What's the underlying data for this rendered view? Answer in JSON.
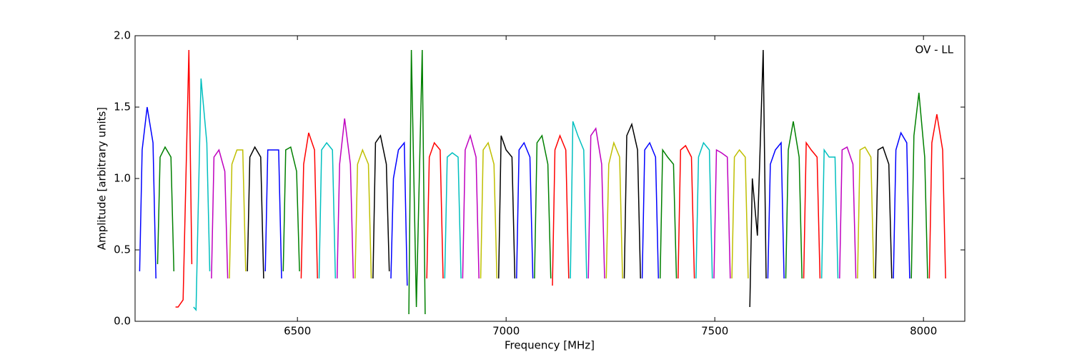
{
  "chart_data": {
    "type": "line",
    "annotation": "OV - LL",
    "xlabel": "Frequency [MHz]",
    "ylabel": "Amplitude [arbitrary units]",
    "xlim": [
      6111,
      8099
    ],
    "ylim": [
      0,
      2
    ],
    "xticks": [
      6500,
      7000,
      7500,
      8000
    ],
    "yticks": [
      {
        "value": 0,
        "label": "0.0"
      },
      0.5,
      {
        "value": 1,
        "label": "1.0"
      },
      1.5,
      {
        "value": 2,
        "label": "2.0"
      }
    ],
    "series": [
      {
        "color": "#0000ff",
        "x": [
          6122,
          6128,
          6140,
          6154,
          6161
        ],
        "values": [
          0.35,
          1.2,
          1.5,
          1.25,
          0.3
        ]
      },
      {
        "color": "#008000",
        "x": [
          6165,
          6171,
          6183,
          6197,
          6204
        ],
        "values": [
          0.4,
          1.15,
          1.22,
          1.15,
          0.35
        ]
      },
      {
        "color": "#ff0000",
        "x": [
          6208,
          6214,
          6226,
          6240,
          6247
        ],
        "values": [
          0.1,
          0.1,
          0.15,
          1.9,
          0.4
        ]
      },
      {
        "color": "#00bfbf",
        "x": [
          6251,
          6257,
          6269,
          6283,
          6290
        ],
        "values": [
          0.1,
          0.08,
          1.7,
          1.25,
          0.35
        ]
      },
      {
        "color": "#bf00bf",
        "x": [
          6294,
          6300,
          6312,
          6326,
          6333
        ],
        "values": [
          0.3,
          1.15,
          1.2,
          1.05,
          0.3
        ]
      },
      {
        "color": "#bfbf00",
        "x": [
          6337,
          6343,
          6355,
          6369,
          6376
        ],
        "values": [
          0.3,
          1.1,
          1.2,
          1.2,
          0.35
        ]
      },
      {
        "color": "#000000",
        "x": [
          6380,
          6386,
          6398,
          6412,
          6419
        ],
        "values": [
          0.35,
          1.15,
          1.22,
          1.15,
          0.3
        ]
      },
      {
        "color": "#0000ff",
        "x": [
          6423,
          6429,
          6441,
          6455,
          6462
        ],
        "values": [
          0.35,
          1.2,
          1.2,
          1.2,
          0.3
        ]
      },
      {
        "color": "#008000",
        "x": [
          6466,
          6472,
          6484,
          6498,
          6505
        ],
        "values": [
          0.35,
          1.2,
          1.22,
          1.05,
          0.35
        ]
      },
      {
        "color": "#ff0000",
        "x": [
          6509,
          6515,
          6527,
          6541,
          6548
        ],
        "values": [
          0.3,
          1.1,
          1.32,
          1.2,
          0.3
        ]
      },
      {
        "color": "#00bfbf",
        "x": [
          6552,
          6558,
          6570,
          6584,
          6591
        ],
        "values": [
          0.3,
          1.2,
          1.25,
          1.2,
          0.3
        ]
      },
      {
        "color": "#bf00bf",
        "x": [
          6595,
          6601,
          6613,
          6627,
          6634
        ],
        "values": [
          0.3,
          1.1,
          1.42,
          1.1,
          0.3
        ]
      },
      {
        "color": "#bfbf00",
        "x": [
          6638,
          6644,
          6656,
          6670,
          6677
        ],
        "values": [
          0.3,
          1.1,
          1.2,
          1.1,
          0.3
        ]
      },
      {
        "color": "#000000",
        "x": [
          6681,
          6687,
          6699,
          6713,
          6720
        ],
        "values": [
          0.3,
          1.25,
          1.3,
          1.1,
          0.35
        ]
      },
      {
        "color": "#0000ff",
        "x": [
          6724,
          6730,
          6742,
          6756,
          6763
        ],
        "values": [
          0.3,
          1.0,
          1.2,
          1.25,
          0.25
        ]
      },
      {
        "color": "#008000",
        "x": [
          6767,
          6773,
          6785,
          6799,
          6806
        ],
        "values": [
          0.05,
          1.9,
          0.1,
          1.9,
          0.05
        ]
      },
      {
        "color": "#ff0000",
        "x": [
          6810,
          6816,
          6828,
          6842,
          6849
        ],
        "values": [
          0.3,
          1.15,
          1.25,
          1.2,
          0.3
        ]
      },
      {
        "color": "#00bfbf",
        "x": [
          6853,
          6859,
          6871,
          6885,
          6892
        ],
        "values": [
          0.3,
          1.15,
          1.18,
          1.15,
          0.3
        ]
      },
      {
        "color": "#bf00bf",
        "x": [
          6896,
          6902,
          6914,
          6928,
          6935
        ],
        "values": [
          0.3,
          1.2,
          1.3,
          1.15,
          0.3
        ]
      },
      {
        "color": "#bfbf00",
        "x": [
          6939,
          6945,
          6957,
          6971,
          6978
        ],
        "values": [
          0.3,
          1.2,
          1.25,
          1.1,
          0.3
        ]
      },
      {
        "color": "#000000",
        "x": [
          6982,
          6988,
          7000,
          7014,
          7021
        ],
        "values": [
          0.3,
          1.3,
          1.2,
          1.15,
          0.3
        ]
      },
      {
        "color": "#0000ff",
        "x": [
          7025,
          7031,
          7043,
          7057,
          7064
        ],
        "values": [
          0.3,
          1.2,
          1.25,
          1.15,
          0.3
        ]
      },
      {
        "color": "#008000",
        "x": [
          7068,
          7074,
          7086,
          7100,
          7107
        ],
        "values": [
          0.3,
          1.25,
          1.3,
          1.1,
          0.3
        ]
      },
      {
        "color": "#ff0000",
        "x": [
          7111,
          7117,
          7129,
          7143,
          7150
        ],
        "values": [
          0.25,
          1.2,
          1.3,
          1.2,
          0.3
        ]
      },
      {
        "color": "#00bfbf",
        "x": [
          7154,
          7160,
          7172,
          7186,
          7193
        ],
        "values": [
          0.3,
          1.4,
          1.3,
          1.2,
          0.3
        ]
      },
      {
        "color": "#bf00bf",
        "x": [
          7197,
          7203,
          7215,
          7229,
          7236
        ],
        "values": [
          0.3,
          1.3,
          1.35,
          1.1,
          0.3
        ]
      },
      {
        "color": "#bfbf00",
        "x": [
          7240,
          7246,
          7258,
          7272,
          7279
        ],
        "values": [
          0.3,
          1.1,
          1.25,
          1.15,
          0.3
        ]
      },
      {
        "color": "#000000",
        "x": [
          7283,
          7289,
          7301,
          7315,
          7322
        ],
        "values": [
          0.3,
          1.3,
          1.38,
          1.2,
          0.3
        ]
      },
      {
        "color": "#0000ff",
        "x": [
          7326,
          7332,
          7344,
          7358,
          7365
        ],
        "values": [
          0.3,
          1.2,
          1.25,
          1.15,
          0.3
        ]
      },
      {
        "color": "#008000",
        "x": [
          7369,
          7375,
          7387,
          7401,
          7408
        ],
        "values": [
          0.3,
          1.2,
          1.15,
          1.1,
          0.3
        ]
      },
      {
        "color": "#ff0000",
        "x": [
          7412,
          7418,
          7430,
          7444,
          7451
        ],
        "values": [
          0.3,
          1.2,
          1.23,
          1.15,
          0.3
        ]
      },
      {
        "color": "#00bfbf",
        "x": [
          7455,
          7461,
          7473,
          7487,
          7494
        ],
        "values": [
          0.3,
          1.15,
          1.25,
          1.2,
          0.3
        ]
      },
      {
        "color": "#bf00bf",
        "x": [
          7498,
          7504,
          7516,
          7530,
          7537
        ],
        "values": [
          0.3,
          1.2,
          1.18,
          1.15,
          0.3
        ]
      },
      {
        "color": "#bfbf00",
        "x": [
          7541,
          7547,
          7559,
          7573,
          7580
        ],
        "values": [
          0.3,
          1.15,
          1.2,
          1.15,
          0.3
        ]
      },
      {
        "color": "#000000",
        "x": [
          7584,
          7590,
          7602,
          7616,
          7623
        ],
        "values": [
          0.1,
          1.0,
          0.6,
          1.9,
          0.3
        ]
      },
      {
        "color": "#0000ff",
        "x": [
          7627,
          7633,
          7645,
          7659,
          7666
        ],
        "values": [
          0.3,
          1.1,
          1.2,
          1.25,
          0.3
        ]
      },
      {
        "color": "#008000",
        "x": [
          7670,
          7676,
          7688,
          7702,
          7709
        ],
        "values": [
          0.3,
          1.2,
          1.4,
          1.15,
          0.3
        ]
      },
      {
        "color": "#ff0000",
        "x": [
          7713,
          7719,
          7731,
          7745,
          7752
        ],
        "values": [
          0.3,
          1.25,
          1.2,
          1.15,
          0.3
        ]
      },
      {
        "color": "#00bfbf",
        "x": [
          7756,
          7762,
          7774,
          7788,
          7795
        ],
        "values": [
          0.3,
          1.2,
          1.15,
          1.15,
          0.3
        ]
      },
      {
        "color": "#bf00bf",
        "x": [
          7799,
          7805,
          7817,
          7831,
          7838
        ],
        "values": [
          0.3,
          1.2,
          1.22,
          1.1,
          0.3
        ]
      },
      {
        "color": "#bfbf00",
        "x": [
          7842,
          7848,
          7860,
          7874,
          7881
        ],
        "values": [
          0.3,
          1.2,
          1.22,
          1.15,
          0.3
        ]
      },
      {
        "color": "#000000",
        "x": [
          7885,
          7891,
          7903,
          7917,
          7924
        ],
        "values": [
          0.3,
          1.2,
          1.22,
          1.1,
          0.3
        ]
      },
      {
        "color": "#0000ff",
        "x": [
          7928,
          7934,
          7946,
          7960,
          7967
        ],
        "values": [
          0.3,
          1.2,
          1.32,
          1.25,
          0.3
        ]
      },
      {
        "color": "#008000",
        "x": [
          7971,
          7977,
          7989,
          8003,
          8010
        ],
        "values": [
          0.3,
          1.3,
          1.6,
          1.15,
          0.3
        ]
      },
      {
        "color": "#ff0000",
        "x": [
          8014,
          8020,
          8032,
          8046,
          8053
        ],
        "values": [
          0.3,
          1.25,
          1.45,
          1.2,
          0.3
        ]
      }
    ]
  }
}
